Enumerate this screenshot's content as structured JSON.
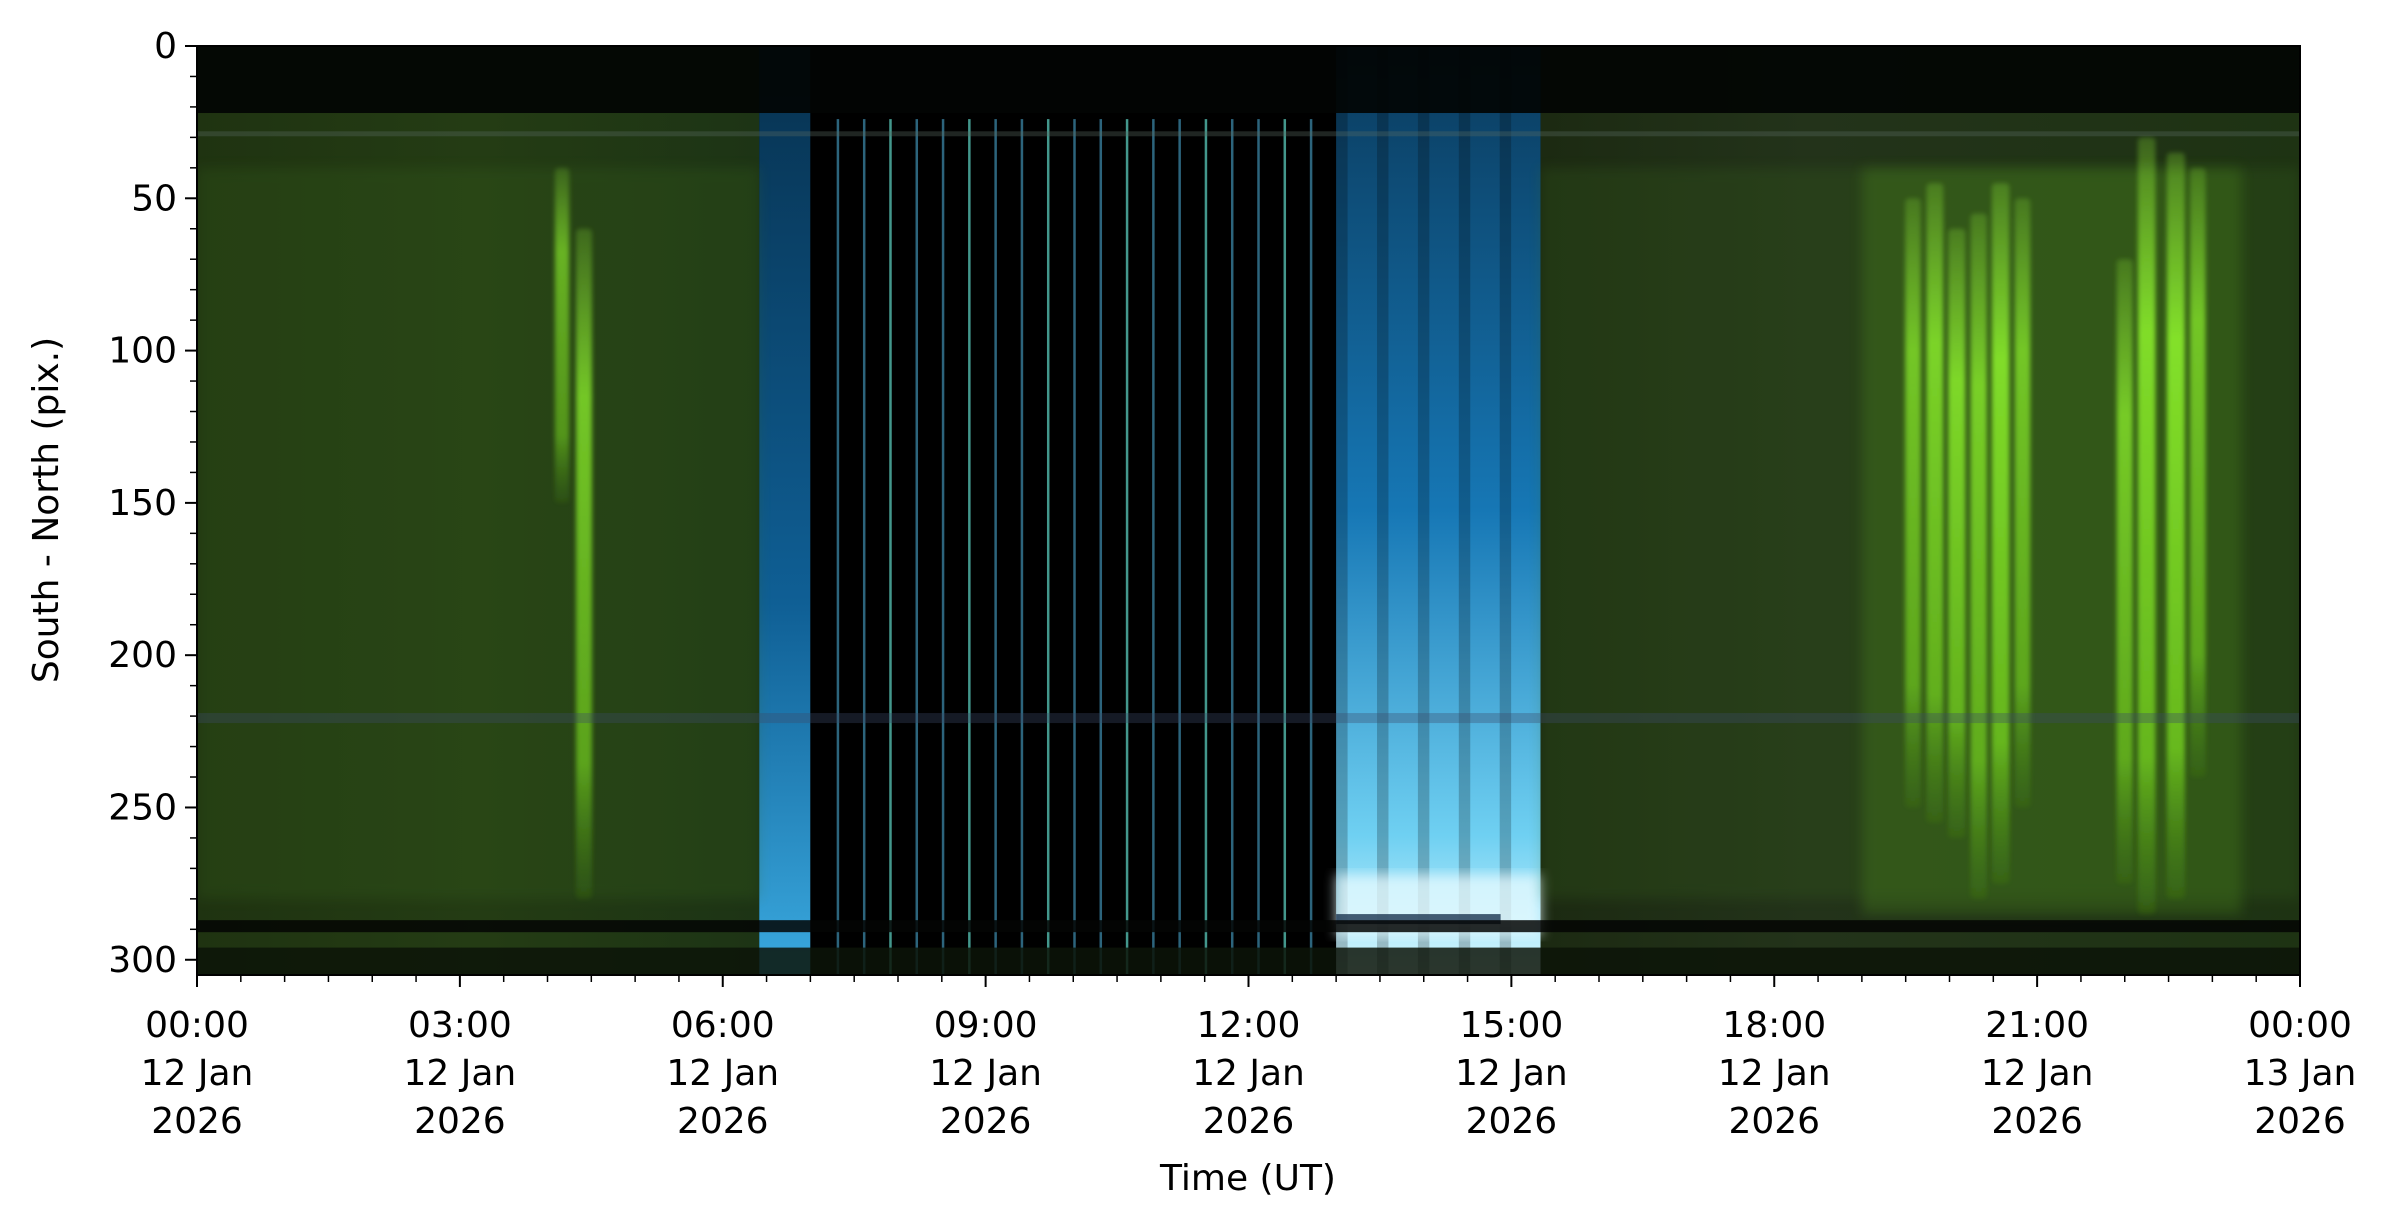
{
  "chart_data": {
    "type": "heatmap",
    "title": "",
    "xlabel": "Time (UT)",
    "ylabel": "South - North (pix.)",
    "x_range": [
      "2026-01-12 00:00",
      "2026-01-13 00:00"
    ],
    "ylim": [
      305,
      0
    ],
    "y_inverted": true,
    "grid": false,
    "legend": "none",
    "x_ticks": [
      {
        "time": "2026-01-12 00:00",
        "label": [
          "00:00",
          "12 Jan",
          "2026"
        ]
      },
      {
        "time": "2026-01-12 03:00",
        "label": [
          "03:00",
          "12 Jan",
          "2026"
        ]
      },
      {
        "time": "2026-01-12 06:00",
        "label": [
          "06:00",
          "12 Jan",
          "2026"
        ]
      },
      {
        "time": "2026-01-12 09:00",
        "label": [
          "09:00",
          "12 Jan",
          "2026"
        ]
      },
      {
        "time": "2026-01-12 12:00",
        "label": [
          "12:00",
          "12 Jan",
          "2026"
        ]
      },
      {
        "time": "2026-01-12 15:00",
        "label": [
          "15:00",
          "12 Jan",
          "2026"
        ]
      },
      {
        "time": "2026-01-12 18:00",
        "label": [
          "18:00",
          "12 Jan",
          "2026"
        ]
      },
      {
        "time": "2026-01-12 21:00",
        "label": [
          "21:00",
          "12 Jan",
          "2026"
        ]
      },
      {
        "time": "2026-01-13 00:00",
        "label": [
          "00:00",
          "13 Jan",
          "2026"
        ]
      }
    ],
    "y_ticks": [
      0,
      50,
      100,
      150,
      200,
      250,
      300
    ],
    "colors": {
      "aurora_green": "#7fd82a",
      "twilight_blue": "#1a8fd0",
      "bright_cyan": "#c8f4ff",
      "background_green": "#1d2f12",
      "night_black": "#000000"
    },
    "periods": [
      {
        "start": "2026-01-12 00:00",
        "end": "2026-01-12 06:25",
        "kind": "night, faint green aurora"
      },
      {
        "start": "2026-01-12 06:25",
        "end": "2026-01-12 07:00",
        "kind": "twilight blue"
      },
      {
        "start": "2026-01-12 07:00",
        "end": "2026-01-12 13:00",
        "kind": "daylight, no data"
      },
      {
        "start": "2026-01-12 13:00",
        "end": "2026-01-12 15:20",
        "kind": "twilight blue"
      },
      {
        "start": "2026-01-12 15:20",
        "end": "2026-01-13 00:00",
        "kind": "night, green aurora"
      }
    ],
    "aurora_arcs": [
      {
        "time": "2026-01-12 04:10",
        "y_top": 40,
        "y_bottom": 150,
        "intensity": 0.55
      },
      {
        "time": "2026-01-12 04:25",
        "y_top": 60,
        "y_bottom": 280,
        "intensity": 0.75
      },
      {
        "time": "2026-01-12 19:35",
        "y_top": 50,
        "y_bottom": 250,
        "intensity": 0.7
      },
      {
        "time": "2026-01-12 19:50",
        "y_top": 45,
        "y_bottom": 255,
        "intensity": 0.85
      },
      {
        "time": "2026-01-12 20:05",
        "y_top": 60,
        "y_bottom": 260,
        "intensity": 0.9
      },
      {
        "time": "2026-01-12 20:20",
        "y_top": 55,
        "y_bottom": 280,
        "intensity": 0.8
      },
      {
        "time": "2026-01-12 20:35",
        "y_top": 45,
        "y_bottom": 275,
        "intensity": 0.95
      },
      {
        "time": "2026-01-12 20:50",
        "y_top": 50,
        "y_bottom": 250,
        "intensity": 0.7
      },
      {
        "time": "2026-01-12 22:00",
        "y_top": 70,
        "y_bottom": 275,
        "intensity": 0.75
      },
      {
        "time": "2026-01-12 22:15",
        "y_top": 30,
        "y_bottom": 285,
        "intensity": 0.95
      },
      {
        "time": "2026-01-12 22:35",
        "y_top": 35,
        "y_bottom": 280,
        "intensity": 1.0
      },
      {
        "time": "2026-01-12 22:50",
        "y_top": 40,
        "y_bottom": 240,
        "intensity": 0.7
      }
    ]
  }
}
